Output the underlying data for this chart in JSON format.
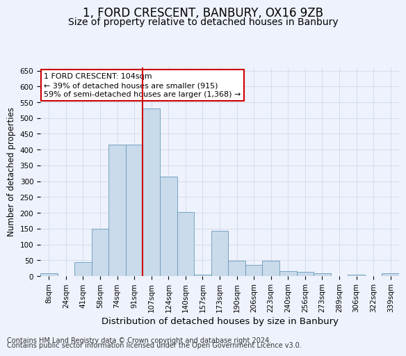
{
  "title": "1, FORD CRESCENT, BANBURY, OX16 9ZB",
  "subtitle": "Size of property relative to detached houses in Banbury",
  "xlabel": "Distribution of detached houses by size in Banbury",
  "ylabel": "Number of detached properties",
  "categories": [
    "8sqm",
    "24sqm",
    "41sqm",
    "58sqm",
    "74sqm",
    "91sqm",
    "107sqm",
    "124sqm",
    "140sqm",
    "157sqm",
    "173sqm",
    "190sqm",
    "206sqm",
    "223sqm",
    "240sqm",
    "256sqm",
    "273sqm",
    "289sqm",
    "306sqm",
    "322sqm",
    "339sqm"
  ],
  "values": [
    8,
    0,
    45,
    150,
    415,
    415,
    530,
    315,
    203,
    5,
    143,
    48,
    35,
    48,
    15,
    13,
    8,
    0,
    5,
    0,
    8
  ],
  "bar_color": "#c9daea",
  "bar_edge_color": "#6699bb",
  "grid_color": "#d0d8ea",
  "vline_x_index": 6,
  "vline_color": "#cc0000",
  "annotation_text": "1 FORD CRESCENT: 104sqm\n← 39% of detached houses are smaller (915)\n59% of semi-detached houses are larger (1,368) →",
  "annotation_box_edgecolor": "#cc0000",
  "ylim": [
    0,
    660
  ],
  "yticks": [
    0,
    50,
    100,
    150,
    200,
    250,
    300,
    350,
    400,
    450,
    500,
    550,
    600,
    650
  ],
  "footer1": "Contains HM Land Registry data © Crown copyright and database right 2024.",
  "footer2": "Contains public sector information licensed under the Open Government Licence v3.0.",
  "title_fontsize": 12,
  "subtitle_fontsize": 10,
  "xlabel_fontsize": 9.5,
  "ylabel_fontsize": 8.5,
  "tick_fontsize": 7.5,
  "annotation_fontsize": 8,
  "footer_fontsize": 7,
  "bg_color": "#eef2fc"
}
